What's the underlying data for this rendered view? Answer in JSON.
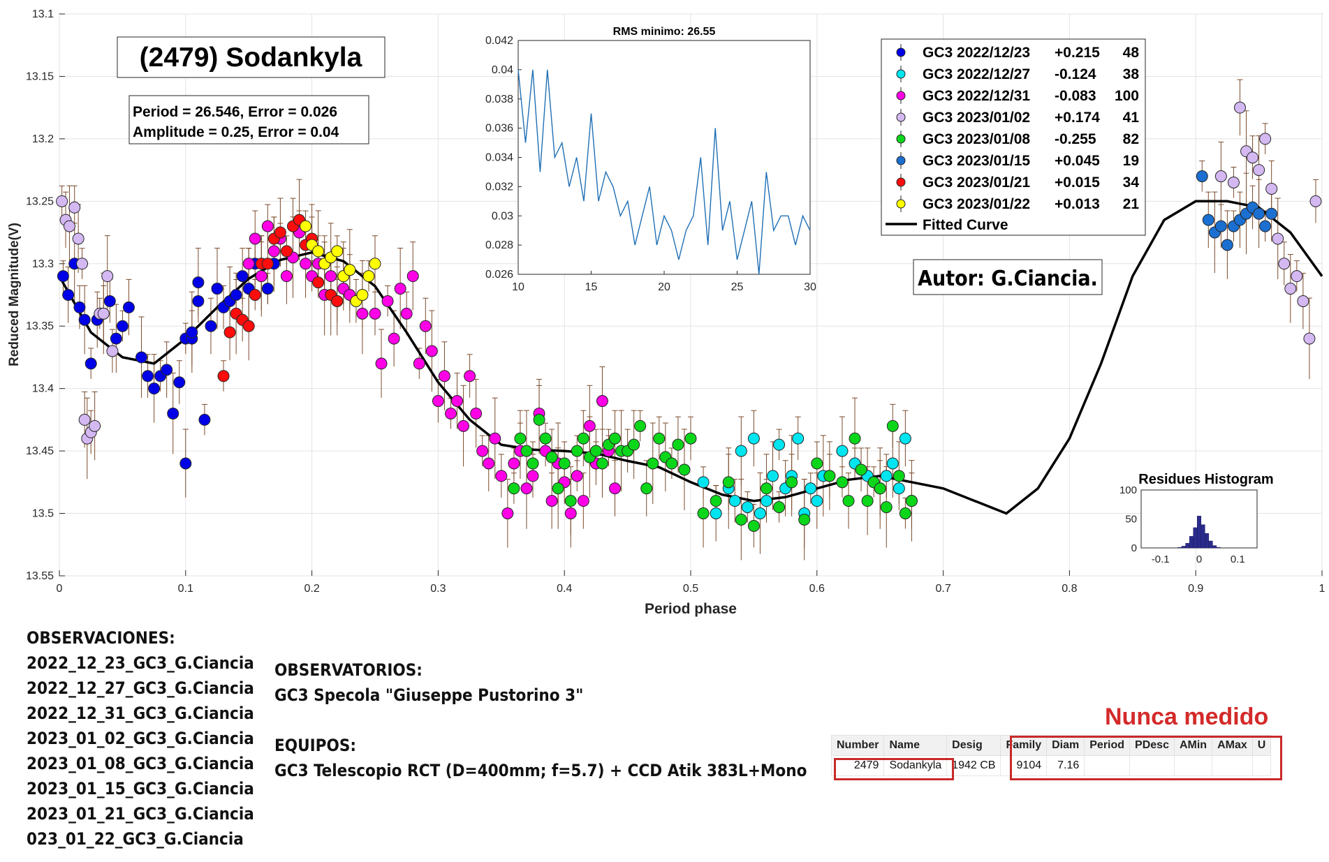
{
  "chart_data": {
    "type": "scatter",
    "title": "(2479) Sodankyla",
    "xlabel": "Period phase",
    "ylabel": "Reduced Magnitude(V)",
    "xlim": [
      0,
      1
    ],
    "ylim": [
      13.55,
      13.1
    ],
    "y_reversed": true,
    "grid": true,
    "xticks": [
      "0",
      "0.1",
      "0.2",
      "0.3",
      "0.4",
      "0.5",
      "0.6",
      "0.7",
      "0.8",
      "0.9",
      "1"
    ],
    "yticks": [
      "13.1",
      "13.15",
      "13.2",
      "13.25",
      "13.3",
      "13.35",
      "13.4",
      "13.45",
      "13.5",
      "13.55"
    ],
    "fit_info": [
      "Period =  26.546, Error = 0.026",
      "Amplitude = 0.25, Error = 0.04"
    ],
    "author_label": "Autor: G.Ciancia.",
    "legend_position": "top-right",
    "legend": [
      {
        "label": "GC3 2022/12/23",
        "offset": "+0.215",
        "count": "48"
      },
      {
        "label": "GC3 2022/12/27",
        "offset": "-0.124",
        "count": "38"
      },
      {
        "label": "GC3 2022/12/31",
        "offset": "-0.083",
        "count": "100"
      },
      {
        "label": "GC3 2023/01/02",
        "offset": "+0.174",
        "count": "41"
      },
      {
        "label": "GC3 2023/01/08",
        "offset": "-0.255",
        "count": "82"
      },
      {
        "label": "GC3 2023/01/15",
        "offset": "+0.045",
        "count": "19"
      },
      {
        "label": "GC3 2023/01/21",
        "offset": "+0.015",
        "count": "34"
      },
      {
        "label": "GC3 2023/01/22",
        "offset": "+0.013",
        "count": "21"
      }
    ],
    "fitted_curve_label": "Fitted Curve",
    "series": [
      {
        "name": "GC3 2022/12/23",
        "color": "#0000e6",
        "x": [
          0.003,
          0.007,
          0.012,
          0.016,
          0.02,
          0.025,
          0.03,
          0.035,
          0.04,
          0.045,
          0.05,
          0.055,
          0.065,
          0.07,
          0.075,
          0.08,
          0.085,
          0.09,
          0.095,
          0.1,
          0.1,
          0.105,
          0.105,
          0.11,
          0.11,
          0.115,
          0.12,
          0.125,
          0.13,
          0.135,
          0.14,
          0.145,
          0.15,
          0.155,
          0.16,
          0.165,
          0.17
        ],
        "y": [
          13.31,
          13.325,
          13.3,
          13.335,
          13.345,
          13.38,
          13.345,
          13.34,
          13.33,
          13.36,
          13.35,
          13.335,
          13.375,
          13.39,
          13.4,
          13.39,
          13.385,
          13.42,
          13.395,
          13.46,
          13.36,
          13.36,
          13.355,
          13.33,
          13.315,
          13.425,
          13.35,
          13.32,
          13.335,
          13.33,
          13.325,
          13.31,
          13.32,
          13.3,
          13.31,
          13.32,
          13.3
        ]
      },
      {
        "name": "GC3 2022/12/27",
        "color": "#00e5ef",
        "x": [
          0.51,
          0.52,
          0.53,
          0.535,
          0.54,
          0.545,
          0.55,
          0.555,
          0.56,
          0.565,
          0.57,
          0.575,
          0.58,
          0.585,
          0.59,
          0.595,
          0.6,
          0.605,
          0.61,
          0.62,
          0.63,
          0.64,
          0.65,
          0.655,
          0.66,
          0.665,
          0.67,
          0.675
        ],
        "y": [
          13.475,
          13.5,
          13.48,
          13.49,
          13.45,
          13.495,
          13.44,
          13.5,
          13.49,
          13.47,
          13.445,
          13.48,
          13.47,
          13.44,
          13.5,
          13.48,
          13.49,
          13.47,
          13.47,
          13.45,
          13.46,
          13.47,
          13.48,
          13.47,
          13.46,
          13.48,
          13.44,
          13.49
        ]
      },
      {
        "name": "GC3 2022/12/31",
        "color": "#ff00e6",
        "x": [
          0.15,
          0.155,
          0.16,
          0.165,
          0.17,
          0.175,
          0.18,
          0.185,
          0.19,
          0.195,
          0.2,
          0.205,
          0.21,
          0.215,
          0.22,
          0.225,
          0.23,
          0.24,
          0.25,
          0.255,
          0.26,
          0.265,
          0.27,
          0.275,
          0.28,
          0.285,
          0.29,
          0.295,
          0.3,
          0.305,
          0.31,
          0.315,
          0.32,
          0.325,
          0.33,
          0.335,
          0.34,
          0.345,
          0.35,
          0.355,
          0.36,
          0.365,
          0.37,
          0.375,
          0.38,
          0.385,
          0.39,
          0.395,
          0.4,
          0.405,
          0.41,
          0.415,
          0.42,
          0.425,
          0.43,
          0.435,
          0.44
        ],
        "y": [
          13.3,
          13.28,
          13.31,
          13.27,
          13.29,
          13.28,
          13.31,
          13.295,
          13.275,
          13.3,
          13.31,
          13.3,
          13.325,
          13.31,
          13.33,
          13.32,
          13.325,
          13.34,
          13.34,
          13.38,
          13.33,
          13.36,
          13.32,
          13.34,
          13.31,
          13.38,
          13.35,
          13.37,
          13.41,
          13.39,
          13.42,
          13.41,
          13.43,
          13.39,
          13.42,
          13.45,
          13.46,
          13.44,
          13.47,
          13.5,
          13.46,
          13.45,
          13.48,
          13.47,
          13.42,
          13.45,
          13.49,
          13.46,
          13.475,
          13.5,
          13.47,
          13.49,
          13.43,
          13.46,
          13.41,
          13.45,
          13.48
        ]
      },
      {
        "name": "GC3 2023/01/02",
        "color": "#d4b8f2",
        "x": [
          0.002,
          0.005,
          0.008,
          0.012,
          0.015,
          0.018,
          0.02,
          0.022,
          0.025,
          0.028,
          0.032,
          0.035,
          0.038,
          0.042,
          0.92,
          0.93,
          0.935,
          0.94,
          0.945,
          0.95,
          0.955,
          0.96,
          0.965,
          0.97,
          0.975,
          0.98,
          0.985,
          0.99,
          0.995
        ],
        "y": [
          13.25,
          13.265,
          13.27,
          13.255,
          13.28,
          13.3,
          13.425,
          13.44,
          13.435,
          13.43,
          13.34,
          13.34,
          13.31,
          13.37,
          13.23,
          13.235,
          13.175,
          13.21,
          13.215,
          13.225,
          13.2,
          13.24,
          13.28,
          13.3,
          13.32,
          13.31,
          13.33,
          13.36,
          13.25
        ]
      },
      {
        "name": "GC3 2023/01/08",
        "color": "#0cd61a",
        "x": [
          0.36,
          0.365,
          0.37,
          0.375,
          0.38,
          0.385,
          0.39,
          0.395,
          0.4,
          0.405,
          0.41,
          0.415,
          0.42,
          0.425,
          0.43,
          0.435,
          0.44,
          0.445,
          0.45,
          0.455,
          0.46,
          0.465,
          0.47,
          0.475,
          0.48,
          0.485,
          0.49,
          0.495,
          0.5,
          0.51,
          0.52,
          0.53,
          0.54,
          0.55,
          0.56,
          0.57,
          0.58,
          0.59,
          0.6,
          0.61,
          0.62,
          0.625,
          0.63,
          0.635,
          0.64,
          0.645,
          0.65,
          0.655,
          0.66,
          0.665,
          0.67,
          0.675
        ],
        "y": [
          13.48,
          13.44,
          13.45,
          13.46,
          13.425,
          13.44,
          13.455,
          13.48,
          13.46,
          13.49,
          13.45,
          13.44,
          13.455,
          13.45,
          13.46,
          13.445,
          13.44,
          13.45,
          13.45,
          13.445,
          13.43,
          13.48,
          13.46,
          13.44,
          13.455,
          13.46,
          13.445,
          13.465,
          13.44,
          13.5,
          13.49,
          13.475,
          13.505,
          13.51,
          13.48,
          13.495,
          13.475,
          13.505,
          13.46,
          13.47,
          13.475,
          13.49,
          13.44,
          13.465,
          13.49,
          13.475,
          13.48,
          13.495,
          13.43,
          13.47,
          13.5,
          13.49
        ]
      },
      {
        "name": "GC3 2023/01/15",
        "color": "#1a6fd1",
        "x": [
          0.905,
          0.91,
          0.915,
          0.92,
          0.925,
          0.93,
          0.935,
          0.94,
          0.945,
          0.95,
          0.955,
          0.96
        ],
        "y": [
          13.23,
          13.265,
          13.275,
          13.27,
          13.285,
          13.27,
          13.265,
          13.26,
          13.255,
          13.26,
          13.27,
          13.26
        ]
      },
      {
        "name": "GC3 2023/01/21",
        "color": "#ff0d0d",
        "x": [
          0.13,
          0.135,
          0.14,
          0.145,
          0.15,
          0.155,
          0.16,
          0.165,
          0.17,
          0.175,
          0.18,
          0.185,
          0.19,
          0.195,
          0.2,
          0.205,
          0.21,
          0.215,
          0.22,
          0.225,
          0.23
        ],
        "y": [
          13.39,
          13.355,
          13.34,
          13.345,
          13.35,
          13.325,
          13.3,
          13.3,
          13.28,
          13.275,
          13.29,
          13.27,
          13.265,
          13.285,
          13.28,
          13.315,
          13.3,
          13.325,
          13.33,
          13.31,
          13.305
        ]
      },
      {
        "name": "GC3 2023/01/22",
        "color": "#ffff00",
        "x": [
          0.195,
          0.2,
          0.205,
          0.21,
          0.215,
          0.22,
          0.225,
          0.23,
          0.235,
          0.24,
          0.245,
          0.25
        ],
        "y": [
          13.27,
          13.285,
          13.29,
          13.3,
          13.295,
          13.29,
          13.31,
          13.305,
          13.33,
          13.325,
          13.31,
          13.3
        ]
      }
    ],
    "fitted_curve": {
      "x": [
        0,
        0.025,
        0.05,
        0.075,
        0.1,
        0.125,
        0.15,
        0.175,
        0.2,
        0.225,
        0.25,
        0.275,
        0.3,
        0.325,
        0.35,
        0.375,
        0.4,
        0.425,
        0.45,
        0.475,
        0.5,
        0.525,
        0.55,
        0.575,
        0.6,
        0.625,
        0.65,
        0.675,
        0.7,
        0.725,
        0.75,
        0.775,
        0.8,
        0.825,
        0.85,
        0.875,
        0.9,
        0.925,
        0.95,
        0.975,
        1
      ],
      "y": [
        13.31,
        13.355,
        13.375,
        13.38,
        13.36,
        13.335,
        13.312,
        13.297,
        13.291,
        13.298,
        13.318,
        13.355,
        13.395,
        13.425,
        13.445,
        13.449,
        13.45,
        13.452,
        13.458,
        13.463,
        13.475,
        13.485,
        13.49,
        13.487,
        13.48,
        13.473,
        13.47,
        13.475,
        13.48,
        13.49,
        13.5,
        13.48,
        13.44,
        13.38,
        13.31,
        13.265,
        13.25,
        13.25,
        13.255,
        13.275,
        13.31
      ]
    },
    "insets": [
      {
        "type": "line",
        "title": "RMS minimo: 26.55",
        "xlim": [
          10,
          30
        ],
        "ylim": [
          0.026,
          0.042
        ],
        "xticks": [
          "10",
          "15",
          "20",
          "25",
          "30"
        ],
        "yticks": [
          "0.026",
          "0.028",
          "0.03",
          "0.032",
          "0.034",
          "0.036",
          "0.038",
          "0.04",
          "0.042"
        ],
        "x": [
          10,
          10.5,
          11,
          11.5,
          12,
          12.5,
          13,
          13.5,
          14,
          14.5,
          15,
          15.5,
          16,
          16.5,
          17,
          17.5,
          18,
          18.5,
          19,
          19.5,
          20,
          20.5,
          21,
          21.5,
          22,
          22.5,
          23,
          23.5,
          24,
          24.5,
          25,
          25.5,
          26,
          26.5,
          27,
          27.5,
          28,
          28.5,
          29,
          29.5,
          30
        ],
        "y": [
          0.04,
          0.035,
          0.04,
          0.033,
          0.04,
          0.034,
          0.035,
          0.032,
          0.034,
          0.031,
          0.037,
          0.031,
          0.033,
          0.032,
          0.03,
          0.031,
          0.028,
          0.03,
          0.032,
          0.028,
          0.03,
          0.029,
          0.027,
          0.029,
          0.03,
          0.034,
          0.028,
          0.036,
          0.029,
          0.031,
          0.027,
          0.029,
          0.031,
          0.026,
          0.033,
          0.029,
          0.03,
          0.03,
          0.028,
          0.03,
          0.029
        ]
      },
      {
        "type": "histogram",
        "title": "Residues Histogram",
        "xlim": [
          -0.15,
          0.15
        ],
        "ylim": [
          0,
          100
        ],
        "xticks": [
          "-0.1",
          "0",
          "0.1"
        ],
        "yticks": [
          "0",
          "50",
          "100"
        ],
        "bins": [
          -0.05,
          -0.04,
          -0.03,
          -0.02,
          -0.01,
          0,
          0.01,
          0.02,
          0.03,
          0.04,
          0.05
        ],
        "values": [
          1,
          3,
          8,
          20,
          35,
          55,
          40,
          25,
          12,
          4,
          1
        ]
      }
    ]
  },
  "notes": {
    "observations_title": "OBSERVACIONES:",
    "observations": [
      "2022_12_23_GC3_G.Ciancia",
      "2022_12_27_GC3_G.Ciancia",
      "2022_12_31_GC3_G.Ciancia",
      "2023_01_02_GC3_G.Ciancia",
      "2023_01_08_GC3_G.Ciancia",
      "2023_01_15_GC3_G.Ciancia",
      "2023_01_21_GC3_G.Ciancia",
      "023_01_22_GC3_G.Ciancia"
    ],
    "observatories_title": "OBSERVATORIOS:",
    "observatory": "GC3 Specola \"Giuseppe Pustorino 3\"",
    "equipment_title": "EQUIPOS:",
    "equipment": "GC3 Telescopio RCT (D=400mm; f=5.7) + CCD Atik 383L+Mono"
  },
  "nunca_label": "Nunca medido",
  "mpc_table": {
    "headers": [
      "Number",
      "Name",
      "Desig",
      "Family",
      "Diam",
      "Period",
      "PDesc",
      "AMin",
      "AMax",
      "U"
    ],
    "row": [
      "2479",
      "Sodankyla",
      "1942 CB",
      "9104",
      "7.16",
      "",
      "",
      "",
      "",
      ""
    ]
  }
}
